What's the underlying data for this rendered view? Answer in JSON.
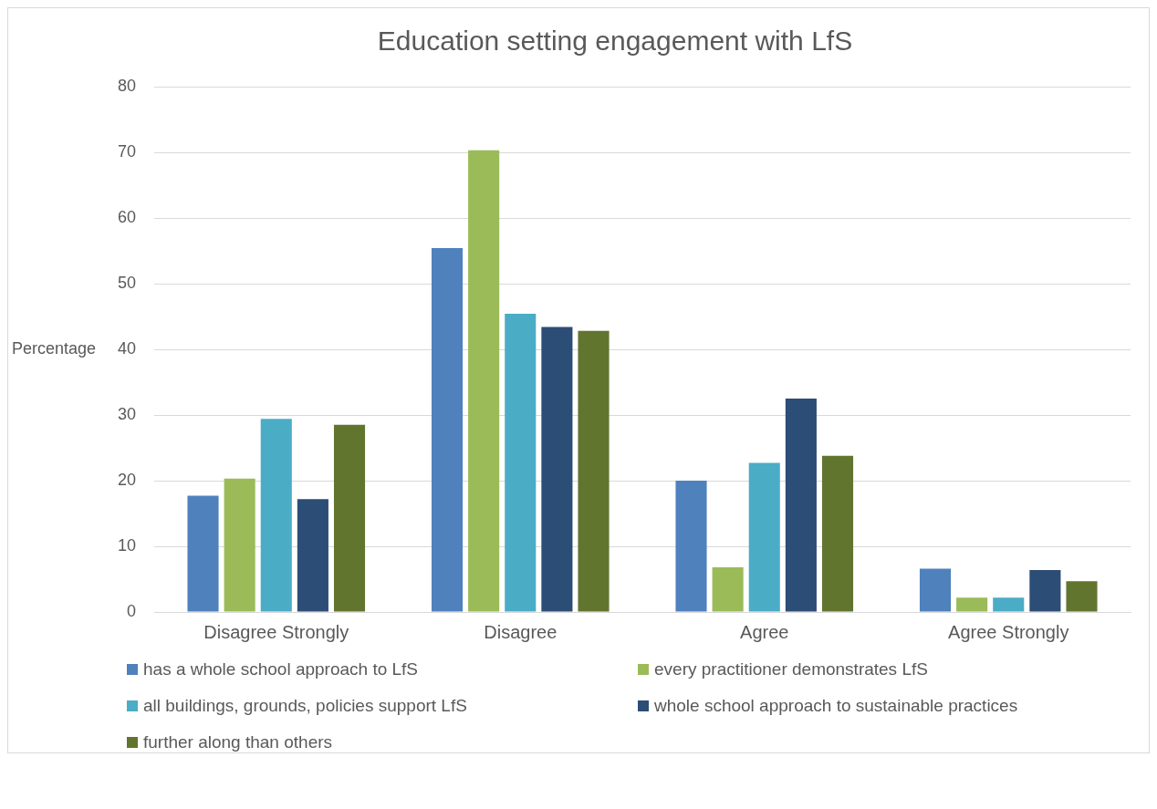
{
  "chart_data": {
    "type": "bar",
    "title": "Education setting engagement with LfS",
    "ylabel": "Percentage",
    "categories": [
      "Disagree Strongly",
      "Disagree",
      "Agree",
      "Agree Strongly"
    ],
    "series": [
      {
        "name": "has a whole school approach to LfS",
        "color": "#4f81bd",
        "values": [
          17.7,
          55.4,
          20.0,
          6.6
        ]
      },
      {
        "name": "every practitioner demonstrates LfS",
        "color": "#9bbb59",
        "values": [
          20.3,
          70.3,
          6.8,
          2.2
        ]
      },
      {
        "name": "all buildings, grounds, policies support LfS",
        "color": "#4bacc6",
        "values": [
          29.4,
          45.4,
          22.7,
          2.2
        ]
      },
      {
        "name": "whole school approach to sustainable practices",
        "color": "#2c4d75",
        "values": [
          17.2,
          43.4,
          32.5,
          6.4
        ]
      },
      {
        "name": "further along than others",
        "color": "#61752f",
        "values": [
          28.5,
          42.8,
          23.8,
          4.7
        ]
      }
    ],
    "ylim": [
      0,
      80
    ],
    "yticks": [
      0,
      10,
      20,
      30,
      40,
      50,
      60,
      70,
      80
    ],
    "grid": "y",
    "legend": "bottom"
  }
}
